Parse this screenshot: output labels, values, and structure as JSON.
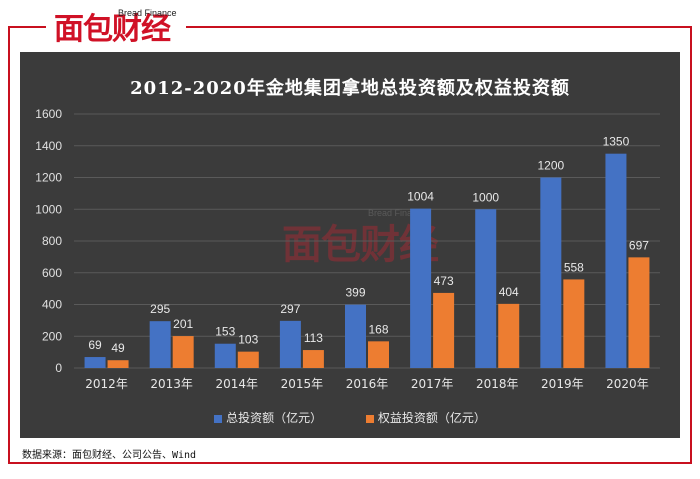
{
  "logo": {
    "main": "面包财经",
    "sub": "Bread Finance"
  },
  "colors": {
    "series1": "#4472c4",
    "series2": "#ed7d31",
    "background": "#3b3b3b",
    "frame": "#c8101f"
  },
  "source": "数据来源：面包财经、公司公告、Wind",
  "chart_data": {
    "type": "bar",
    "title": "2012-2020年金地集团拿地总投资额及权益投资额",
    "categories": [
      "2012年",
      "2013年",
      "2014年",
      "2015年",
      "2016年",
      "2017年",
      "2018年",
      "2019年",
      "2020年"
    ],
    "series": [
      {
        "name": "总投资额（亿元）",
        "color": "#4472c4",
        "values": [
          69,
          295,
          153,
          297,
          399,
          1004,
          1000,
          1200,
          1350
        ]
      },
      {
        "name": "权益投资额（亿元）",
        "color": "#ed7d31",
        "values": [
          49,
          201,
          103,
          113,
          168,
          473,
          404,
          558,
          697
        ]
      }
    ],
    "yticks": [
      0,
      200,
      400,
      600,
      800,
      1000,
      1200,
      1400,
      1600
    ],
    "ylim": [
      0,
      1600
    ],
    "legend": "bottom",
    "grid": true
  }
}
